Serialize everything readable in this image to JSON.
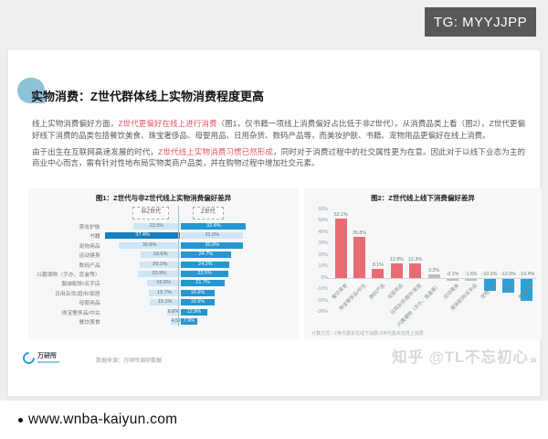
{
  "badge": {
    "text": "TG: MYYJJPP"
  },
  "footer_bar": {
    "url": "www.wnba-kaiyun.com"
  },
  "watermark": {
    "zhihu": "知乎 @TL不忘初心",
    "page_number": "10"
  },
  "slide": {
    "title": "实物消费：Z世代群体线上实物消费程度更高",
    "paragraphs": [
      [
        {
          "text": "线上实物消费偏好方面，",
          "em": false
        },
        {
          "text": "Z世代更偏好在线上进行消费",
          "em": true
        },
        {
          "text": "（图1，仅书籍一项线上消费偏好占比低于非Z世代）。从消费品类上看（图2），Z世代更偏好线下消费的品类包括餐饮美食、珠宝奢侈品、母婴用品、日用杂货、数码产品等，而美妆护肤、书籍、宠物用品更偏好在线上消费。",
          "em": false
        }
      ],
      [
        {
          "text": "由于出生在互联网高速发展的时代，",
          "em": false
        },
        {
          "text": "Z世代线上实物消费习惯已然形成",
          "em": true
        },
        {
          "text": "，同时对于消费过程中的社交属性更为在意。因此对于以线下业态为主的商业中心而言，需有针对性地布局实物类商户品类，并在购物过程中增加社交元素。",
          "em": false
        }
      ]
    ],
    "footer": {
      "logo_text": "万研所",
      "source_note": "数据来源：万研所调研数据"
    }
  },
  "chart_data": [
    {
      "type": "bar",
      "variant": "diverging-horizontal",
      "title": "图1：Z世代与非Z世代线上实物消费偏好差异",
      "legend": [
        "非Z世代",
        "Z世代"
      ],
      "unit": "%",
      "categories": [
        "美妆护肤",
        "书籍",
        "宠物用品",
        "运动健身",
        "数码产品",
        "兴趣潮物（手办、盲盒等）",
        "服装配饰/买手店",
        "日用杂货/超市/家居",
        "母婴用品",
        "珠宝奢侈品/中古",
        "餐饮美食"
      ],
      "series": [
        {
          "name": "非Z世代",
          "values": [
            23.5,
            37.4,
            30.6,
            19.6,
            20.1,
            20.9,
            16.5,
            15.7,
            15.1,
            6.6,
            4.5
          ]
        },
        {
          "name": "Z世代",
          "values": [
            32.4,
            31.0,
            30.9,
            24.7,
            24.2,
            23.5,
            21.7,
            16.6,
            16.5,
            12.9,
            7.9
          ]
        }
      ],
      "colors": {
        "light": "#cfe5f3",
        "dark": "#2496d2",
        "dark_left": "#177fbe",
        "light_text": "#5f6b75",
        "dark_text": "#ffffff"
      }
    },
    {
      "type": "bar",
      "variant": "vertical-diverging",
      "title": "图2：Z世代线上线下消费偏好差异",
      "categories": [
        "餐饮美食",
        "珠宝奢侈品/中古",
        "数码产品",
        "母婴用品",
        "日用杂货/超市/家居",
        "兴趣潮物（手办、盲盒等）",
        "运动健身",
        "服装配饰/买手店",
        "宠物用品",
        "书籍",
        "美妆护肤"
      ],
      "values": [
        52.1,
        35.8,
        8.1,
        12.9,
        12.3,
        3.2,
        -2.1,
        -1.6,
        -10.9,
        -12.0,
        -19.4
      ],
      "unit": "%",
      "ylim": [
        -30,
        60
      ],
      "yticks": [
        "60%",
        "50%",
        "40%",
        "30%",
        "20%",
        "10%",
        "0%",
        "-10%",
        "-20%",
        "-30%"
      ],
      "footnote": "计算方式：Z世代基本在线下消费-Z世代基本在线上消费",
      "colors": {
        "positive": "#e86b74",
        "negative": "#2aa1d8",
        "neutral": "#bcbec0"
      },
      "neutral_abs_below": 5,
      "legend_position": "none",
      "grid": false
    }
  ]
}
